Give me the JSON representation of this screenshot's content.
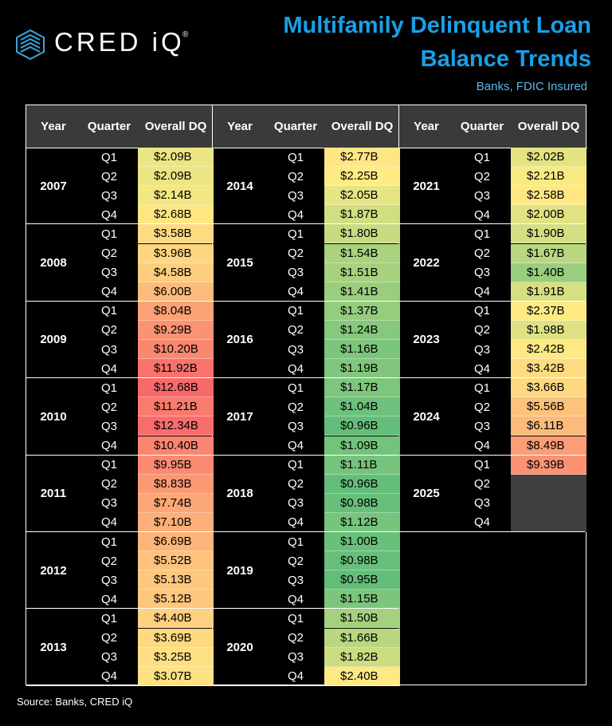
{
  "header": {
    "logo": {
      "name": "CRED iQ",
      "mark": "®"
    },
    "title_lines": [
      "Multifamily Delinquent Loan",
      "Balance Trends"
    ],
    "subtitle": "Banks, FDIC Insured"
  },
  "table": {
    "columns": [
      "Year",
      "Quarter",
      "Overall DQ"
    ],
    "groups": [
      {
        "year": "2007",
        "quarters": [
          "Q1",
          "Q2",
          "Q3",
          "Q4"
        ],
        "values": [
          "$2.09B",
          "$2.09B",
          "$2.14B",
          "$2.68B"
        ]
      },
      {
        "year": "2008",
        "quarters": [
          "Q1",
          "Q2",
          "Q3",
          "Q4"
        ],
        "values": [
          "$3.58B",
          "$3.96B",
          "$4.58B",
          "$6.00B"
        ]
      },
      {
        "year": "2009",
        "quarters": [
          "Q1",
          "Q2",
          "Q3",
          "Q4"
        ],
        "values": [
          "$8.04B",
          "$9.29B",
          "$10.20B",
          "$11.92B"
        ]
      },
      {
        "year": "2010",
        "quarters": [
          "Q1",
          "Q2",
          "Q3",
          "Q4"
        ],
        "values": [
          "$12.68B",
          "$11.21B",
          "$12.34B",
          "$10.40B"
        ]
      },
      {
        "year": "2011",
        "quarters": [
          "Q1",
          "Q2",
          "Q3",
          "Q4"
        ],
        "values": [
          "$9.95B",
          "$8.83B",
          "$7.74B",
          "$7.10B"
        ]
      },
      {
        "year": "2012",
        "quarters": [
          "Q1",
          "Q2",
          "Q3",
          "Q4"
        ],
        "values": [
          "$6.69B",
          "$5.52B",
          "$5.13B",
          "$5.12B"
        ]
      },
      {
        "year": "2013",
        "quarters": [
          "Q1",
          "Q2",
          "Q3",
          "Q4"
        ],
        "values": [
          "$4.40B",
          "$3.69B",
          "$3.25B",
          "$3.07B"
        ]
      },
      {
        "year": "2014",
        "quarters": [
          "Q1",
          "Q2",
          "Q3",
          "Q4"
        ],
        "values": [
          "$2.77B",
          "$2.25B",
          "$2.05B",
          "$1.87B"
        ]
      },
      {
        "year": "2015",
        "quarters": [
          "Q1",
          "Q2",
          "Q3",
          "Q4"
        ],
        "values": [
          "$1.80B",
          "$1.54B",
          "$1.51B",
          "$1.41B"
        ]
      },
      {
        "year": "2016",
        "quarters": [
          "Q1",
          "Q2",
          "Q3",
          "Q4"
        ],
        "values": [
          "$1.37B",
          "$1.24B",
          "$1.16B",
          "$1.19B"
        ]
      },
      {
        "year": "2017",
        "quarters": [
          "Q1",
          "Q2",
          "Q3",
          "Q4"
        ],
        "values": [
          "$1.17B",
          "$1.04B",
          "$0.96B",
          "$1.09B"
        ]
      },
      {
        "year": "2018",
        "quarters": [
          "Q1",
          "Q2",
          "Q3",
          "Q4"
        ],
        "values": [
          "$1.11B",
          "$0.96B",
          "$0.98B",
          "$1.12B"
        ]
      },
      {
        "year": "2019",
        "quarters": [
          "Q1",
          "Q2",
          "Q3",
          "Q4"
        ],
        "values": [
          "$1.00B",
          "$0.98B",
          "$0.95B",
          "$1.15B"
        ]
      },
      {
        "year": "2020",
        "quarters": [
          "Q1",
          "Q2",
          "Q3",
          "Q4"
        ],
        "values": [
          "$1.50B",
          "$1.66B",
          "$1.82B",
          "$2.40B"
        ]
      },
      {
        "year": "2021",
        "quarters": [
          "Q1",
          "Q2",
          "Q3",
          "Q4"
        ],
        "values": [
          "$2.02B",
          "$2.21B",
          "$2.58B",
          "$2.00B"
        ]
      },
      {
        "year": "2022",
        "quarters": [
          "Q1",
          "Q2",
          "Q3",
          "Q4"
        ],
        "values": [
          "$1.90B",
          "$1.67B",
          "$1.40B",
          "$1.91B"
        ]
      },
      {
        "year": "2023",
        "quarters": [
          "Q1",
          "Q2",
          "Q3",
          "Q4"
        ],
        "values": [
          "$2.37B",
          "$1.98B",
          "$2.42B",
          "$3.42B"
        ]
      },
      {
        "year": "2024",
        "quarters": [
          "Q1",
          "Q2",
          "Q3",
          "Q4"
        ],
        "values": [
          "$3.66B",
          "$5.56B",
          "$6.11B",
          "$8.49B"
        ]
      },
      {
        "year": "2025",
        "quarters": [
          "Q1",
          "Q2",
          "Q3",
          "Q4"
        ],
        "values": [
          "$9.39B",
          null,
          null,
          null
        ]
      }
    ]
  },
  "footer": {
    "source": "Source: Banks, CRED iQ"
  }
}
